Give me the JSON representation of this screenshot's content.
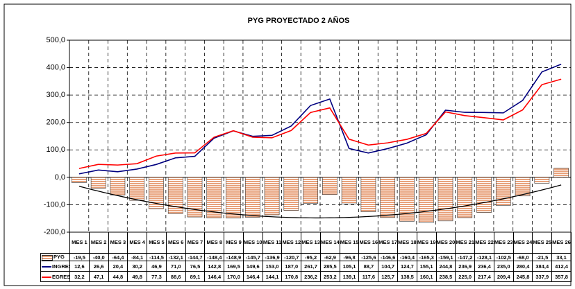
{
  "chart_data": {
    "type": "bar_line",
    "title": "PYG PROYECTADO  2 AÑOS",
    "categories": [
      "MES 1",
      "MES 2",
      "MES 3",
      "MES 4",
      "MES 5",
      "MES 6",
      "MES 7",
      "MES 8",
      "MES 9",
      "MES 10",
      "MES 11",
      "MES 12",
      "MES 13",
      "MES 14",
      "MES 15",
      "MES 16",
      "MES 17",
      "MES 18",
      "MES 19",
      "MES 20",
      "MES 21",
      "MES 22",
      "MES 23",
      "MES 24",
      "MES 25",
      "MES 26"
    ],
    "series": [
      {
        "name": "PYG",
        "type": "bar",
        "color": "#e8a27c",
        "values": [
          -19.5,
          -40.0,
          -64.4,
          -84.1,
          -114.5,
          -132.1,
          -144.7,
          -148.4,
          -148.9,
          -145.7,
          -136.9,
          -120.7,
          -95.2,
          -62.9,
          -96.8,
          -125.6,
          -146.6,
          -160.4,
          -165.3,
          -159.1,
          -147.2,
          -128.1,
          -102.5,
          -68.0,
          -21.5,
          33.1
        ],
        "value_labels": [
          "-19,5",
          "-40,0",
          "-64,4",
          "-84,1",
          "-114,5",
          "-132,1",
          "-144,7",
          "-148,4",
          "-148,9",
          "-145,7",
          "-136,9",
          "-120,7",
          "-95,2",
          "-62,9",
          "-96,8",
          "-125,6",
          "-146,6",
          "-160,4",
          "-165,3",
          "-159,1",
          "-147,2",
          "-128,1",
          "-102,5",
          "-68,0",
          "-21,5",
          "33,1"
        ]
      },
      {
        "name": "INGRESOS",
        "type": "line",
        "color": "#000080",
        "values": [
          12.6,
          26.6,
          20.4,
          30.2,
          46.9,
          71.0,
          76.5,
          142.8,
          169.5,
          149.6,
          153.0,
          187.0,
          261.7,
          285.5,
          105.1,
          88.7,
          104.7,
          124.7,
          155.1,
          244.8,
          236.9,
          236.4,
          235.0,
          280.4,
          384.4,
          412.4
        ],
        "value_labels": [
          "12,6",
          "26,6",
          "20,4",
          "30,2",
          "46,9",
          "71,0",
          "76,5",
          "142,8",
          "169,5",
          "149,6",
          "153,0",
          "187,0",
          "261,7",
          "285,5",
          "105,1",
          "88,7",
          "104,7",
          "124,7",
          "155,1",
          "244,8",
          "236,9",
          "236,4",
          "235,0",
          "280,4",
          "384,4",
          "412,4"
        ]
      },
      {
        "name": "EGRESOS",
        "type": "line",
        "color": "#ff0000",
        "values": [
          32.2,
          47.1,
          44.8,
          49.8,
          77.3,
          88.6,
          89.1,
          146.4,
          170.0,
          146.4,
          144.1,
          170.8,
          236.2,
          253.2,
          139.1,
          117.6,
          125.7,
          138.5,
          160.1,
          238.5,
          225.0,
          217.4,
          209.4,
          245.8,
          337.9,
          357.8
        ],
        "value_labels": [
          "32,2",
          "47,1",
          "44,8",
          "49,8",
          "77,3",
          "88,6",
          "89,1",
          "146,4",
          "170,0",
          "146,4",
          "144,1",
          "170,8",
          "236,2",
          "253,2",
          "139,1",
          "117,6",
          "125,7",
          "138,5",
          "160,1",
          "238,5",
          "225,0",
          "217,4",
          "209,4",
          "245,8",
          "337,9",
          "357,8"
        ]
      }
    ],
    "ylim": [
      -200,
      500
    ],
    "yticks": [
      {
        "value": -200,
        "label": "-200,0"
      },
      {
        "value": -100,
        "label": "-100,0"
      },
      {
        "value": 0,
        "label": "0,0"
      },
      {
        "value": 100,
        "label": "100,0"
      },
      {
        "value": 200,
        "label": "200,0"
      },
      {
        "value": 300,
        "label": "300,0"
      },
      {
        "value": 400,
        "label": "400,0"
      },
      {
        "value": 500,
        "label": "500,0"
      }
    ],
    "grid": true,
    "trendline": true
  }
}
